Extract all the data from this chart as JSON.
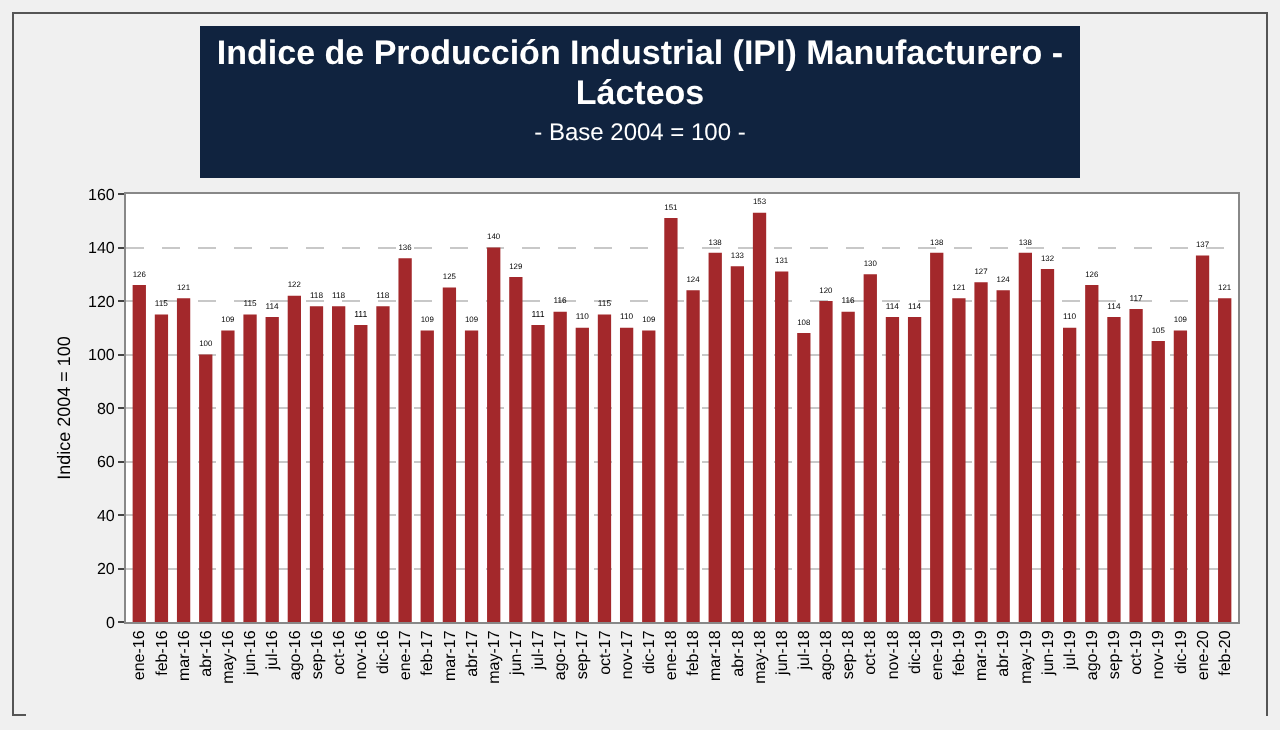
{
  "chart_data": {
    "type": "bar",
    "title": "Indice de Producción Industrial (IPI) Manufacturero - Lácteos",
    "subtitle": "- Base 2004 = 100 -",
    "ylabel": "Indice 2004 = 100",
    "categories": [
      "ene-16",
      "feb-16",
      "mar-16",
      "abr-16",
      "may-16",
      "jun-16",
      "jul-16",
      "ago-16",
      "sep-16",
      "oct-16",
      "nov-16",
      "dic-16",
      "ene-17",
      "feb-17",
      "mar-17",
      "abr-17",
      "may-17",
      "jun-17",
      "jul-17",
      "ago-17",
      "sep-17",
      "oct-17",
      "nov-17",
      "dic-17",
      "ene-18",
      "feb-18",
      "mar-18",
      "abr-18",
      "may-18",
      "jun-18",
      "jul-18",
      "ago-18",
      "sep-18",
      "oct-18",
      "nov-18",
      "dic-18",
      "ene-19",
      "feb-19",
      "mar-19",
      "abr-19",
      "may-19",
      "jun-19",
      "jul-19",
      "ago-19",
      "sep-19",
      "oct-19",
      "nov-19",
      "dic-19",
      "ene-20",
      "feb-20"
    ],
    "values": [
      126,
      115,
      121,
      100,
      109,
      115,
      114,
      122,
      118,
      118,
      111,
      118,
      136,
      109,
      125,
      109,
      140,
      129,
      111,
      116,
      110,
      115,
      110,
      109,
      151,
      124,
      138,
      133,
      153,
      131,
      108,
      120,
      116,
      130,
      114,
      114,
      138,
      121,
      127,
      124,
      138,
      132,
      110,
      126,
      114,
      117,
      105,
      109,
      137,
      121
    ],
    "color": "#a3282b",
    "ylim": [
      0,
      160
    ],
    "yticks": [
      0,
      20,
      40,
      60,
      80,
      100,
      120,
      140,
      160
    ],
    "grid": "y",
    "data_labels": true
  }
}
